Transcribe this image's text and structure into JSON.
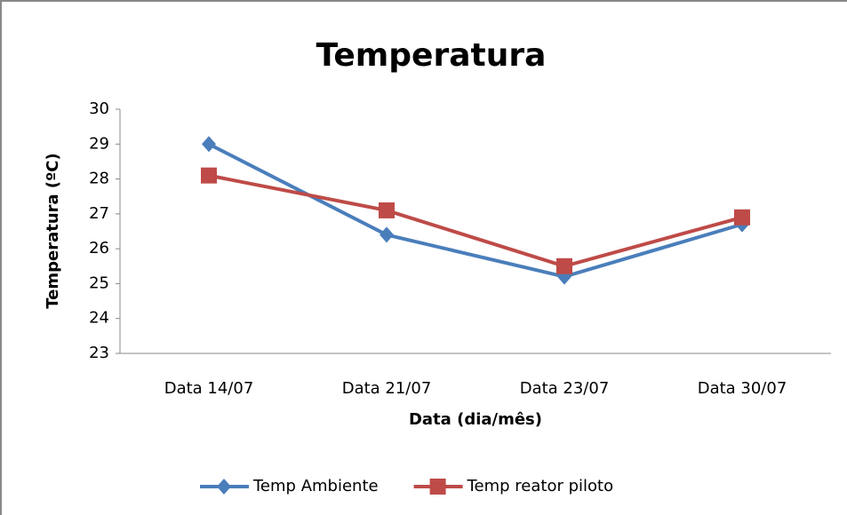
{
  "chart_data": {
    "type": "line",
    "title": "Temperatura",
    "x_label": "Data (dia/mês)",
    "y_label": "Temperatura (ºC)",
    "categories": [
      "Data 14/07",
      "Data 21/07",
      "Data 23/07",
      "Data 30/07"
    ],
    "series": [
      {
        "name": "Temp Ambiente",
        "color": "#4a7ebb",
        "marker": "diamond",
        "values": [
          29,
          26.4,
          25.2,
          26.7
        ]
      },
      {
        "name": "Temp reator piloto",
        "color": "#be4b48",
        "marker": "square",
        "values": [
          28.1,
          27.1,
          25.5,
          26.9
        ]
      }
    ],
    "ylim": [
      23,
      30
    ],
    "yticks": [
      23,
      24,
      25,
      26,
      27,
      28,
      29,
      30
    ],
    "grid": false,
    "legend": "bottom"
  }
}
